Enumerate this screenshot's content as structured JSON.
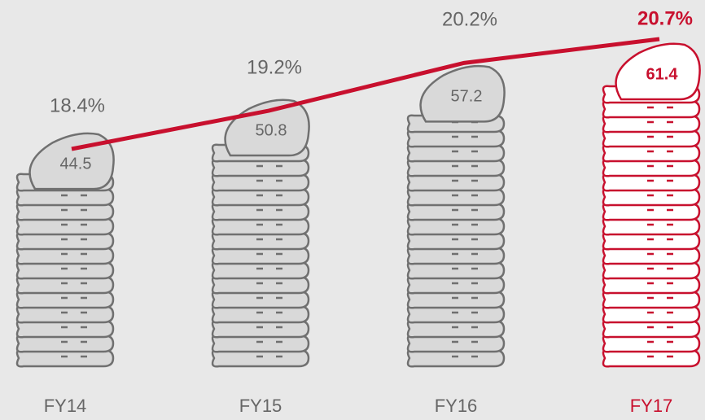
{
  "chart_data": {
    "type": "pictorial-bar",
    "categories": [
      "FY14",
      "FY15",
      "FY16",
      "FY17"
    ],
    "values": [
      44.5,
      50.8,
      57.2,
      61.4
    ],
    "colors": [
      "#707070",
      "#707070",
      "#707070",
      "#c8102e"
    ],
    "fills": [
      "#d9d9d9",
      "#d9d9d9",
      "#d9d9d9",
      "#ffffff"
    ],
    "line": {
      "color": "#c8102e",
      "values": [
        18.4,
        19.2,
        20.2,
        20.7
      ],
      "value_labels": [
        "18.4%",
        "19.2%",
        "20.2%",
        "20.7%"
      ]
    }
  }
}
